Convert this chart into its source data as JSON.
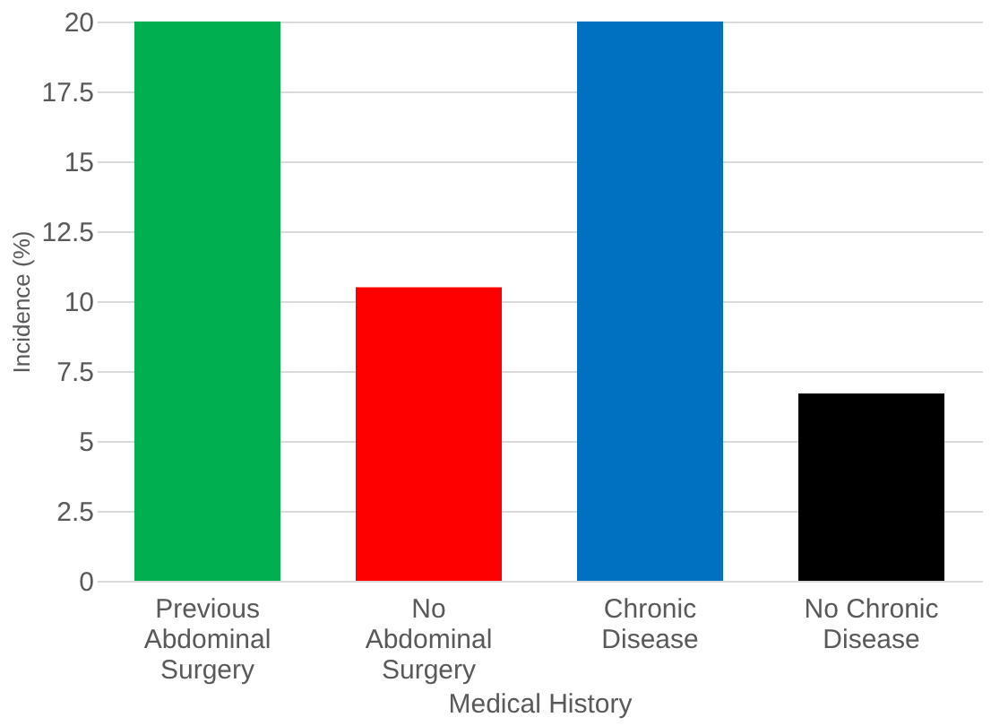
{
  "chart_data": {
    "type": "bar",
    "categories": [
      "Previous Abdominal Surgery",
      "No Abdominal Surgery",
      "Chronic Disease",
      "No Chronic Disease"
    ],
    "values": [
      20,
      10.5,
      20,
      6.7
    ],
    "colors": [
      "#00b050",
      "#ff0000",
      "#0070c0",
      "#000000"
    ],
    "xlabel": "Medical History",
    "ylabel": "Incidence (%)",
    "ylim": [
      0,
      20
    ],
    "yticks": [
      0,
      2.5,
      5,
      7.5,
      10,
      12.5,
      15,
      17.5,
      20
    ],
    "grid": "y"
  }
}
